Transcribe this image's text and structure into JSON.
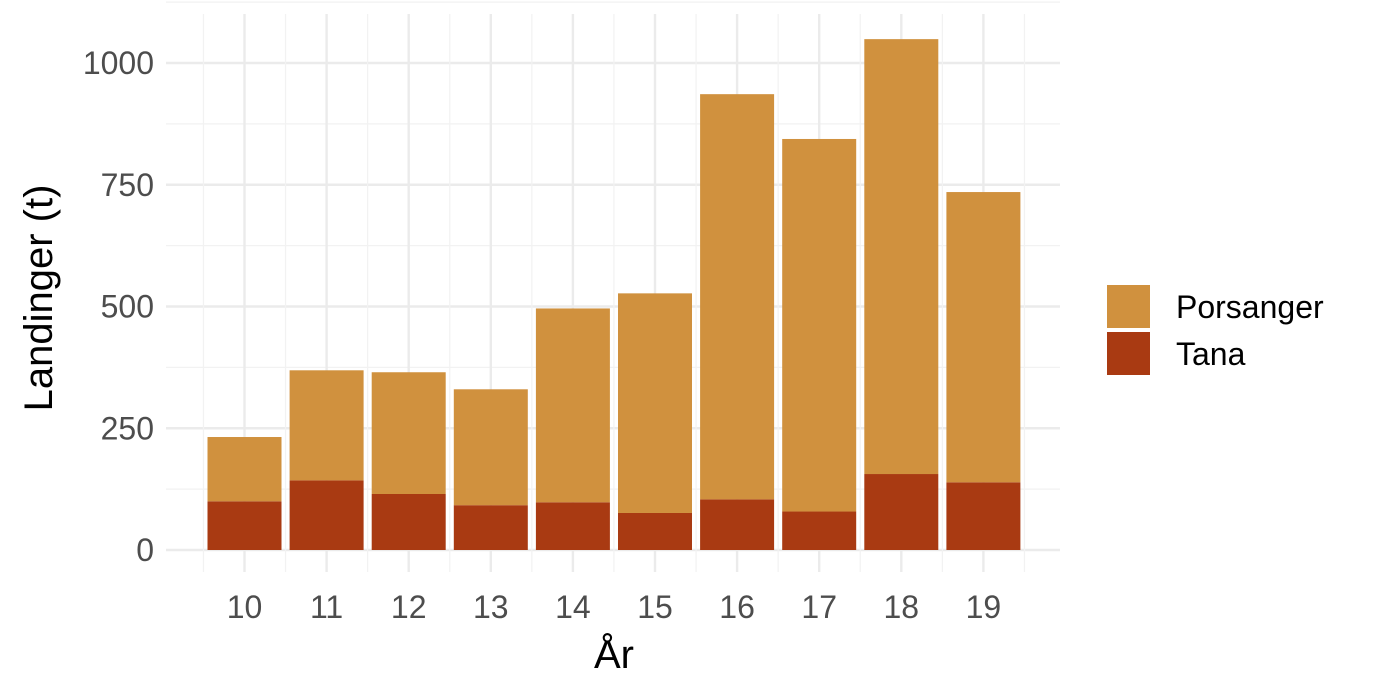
{
  "chart_data": {
    "type": "bar",
    "stacked": true,
    "categories": [
      "10",
      "11",
      "12",
      "13",
      "14",
      "15",
      "16",
      "17",
      "18",
      "19"
    ],
    "series": [
      {
        "name": "Tana",
        "color": "#a93a12",
        "values": [
          100,
          143,
          115,
          92,
          98,
          76,
          104,
          79,
          156,
          139
        ]
      },
      {
        "name": "Porsanger",
        "color": "#d0913e",
        "values": [
          132,
          226,
          250,
          238,
          398,
          451,
          832,
          765,
          893,
          596
        ]
      }
    ],
    "totals": [
      232,
      369,
      365,
      330,
      496,
      527,
      936,
      844,
      1049,
      735
    ],
    "title": "",
    "xlabel": "År",
    "ylabel": "Landinger (t)",
    "ylim": [
      0,
      1100
    ],
    "yticks": [
      0,
      250,
      500,
      750,
      1000
    ],
    "grid": true,
    "legend": {
      "position": "right",
      "order": [
        "Porsanger",
        "Tana"
      ]
    }
  }
}
